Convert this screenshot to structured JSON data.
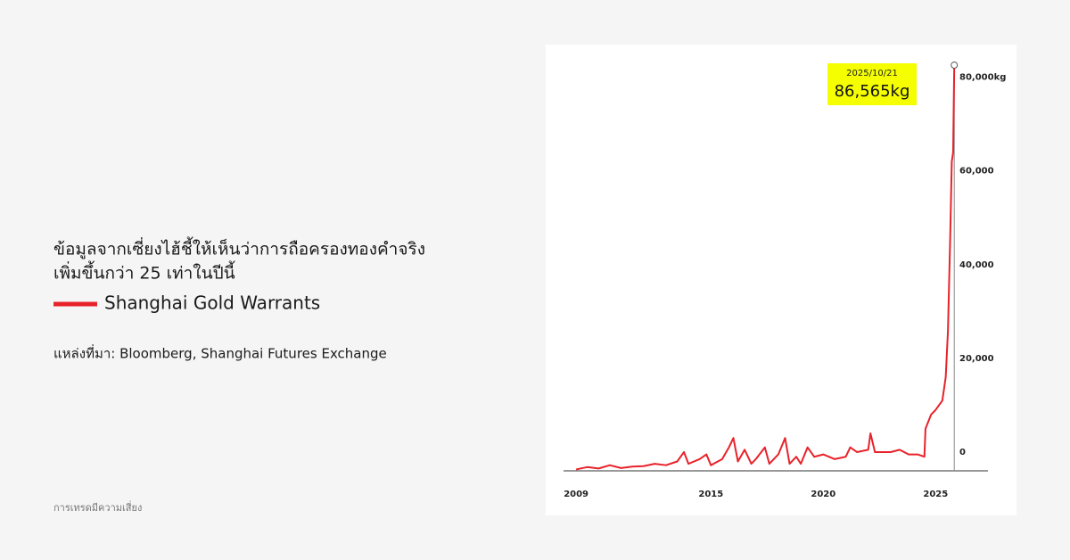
{
  "heading": [
    "ข้อมูลจากเซี่ยงไฮ้ชี้ให้เห็นว่าการถือครองทองคำจริง",
    "เพิ่มขึ้นกว่า 25 เท่าในปีนี้"
  ],
  "source": "แหล่งที่มา: Bloomberg, Shanghai Futures Exchange",
  "disclaimer": "การเทรดมีความเสี่ยง",
  "chart_data": {
    "type": "line",
    "x": [
      2009.0,
      2009.5,
      2010.0,
      2010.5,
      2011.0,
      2011.5,
      2012.0,
      2012.5,
      2013.0,
      2013.5,
      2013.8,
      2014.0,
      2014.5,
      2014.8,
      2015.0,
      2015.5,
      2015.8,
      2016.0,
      2016.2,
      2016.5,
      2016.8,
      2017.0,
      2017.4,
      2017.6,
      2018.0,
      2018.3,
      2018.5,
      2018.8,
      2019.0,
      2019.3,
      2019.6,
      2020.0,
      2020.5,
      2021.0,
      2021.2,
      2021.5,
      2022.0,
      2022.1,
      2022.3,
      2022.8,
      2023.0,
      2023.4,
      2023.8,
      2024.2,
      2024.5,
      2024.55,
      2024.8,
      2025.0,
      2025.3,
      2025.45,
      2025.55,
      2025.65,
      2025.72,
      2025.78,
      2025.83
    ],
    "series": [
      {
        "name": "Shanghai Gold Warrants",
        "color": "#e8222a",
        "values": [
          300,
          800,
          500,
          1200,
          600,
          900,
          1000,
          1500,
          1200,
          2000,
          4000,
          1500,
          2500,
          3500,
          1200,
          2500,
          5000,
          7000,
          2000,
          4500,
          1500,
          2500,
          5000,
          1500,
          3500,
          7000,
          1500,
          3000,
          1500,
          5000,
          3000,
          3500,
          2500,
          3000,
          5000,
          4000,
          4500,
          8000,
          4000,
          4000,
          4000,
          4500,
          3500,
          3500,
          3000,
          9000,
          12000,
          13000,
          15000,
          20000,
          30000,
          50000,
          66000,
          68000,
          86565
        ]
      }
    ],
    "annotation": {
      "x": 2025.83,
      "value": 86565,
      "date": "2025/10/21",
      "label": "86,565kg"
    },
    "xlim": [
      2008.44,
      2027.33
    ],
    "xticks": [
      2009,
      2015,
      2020,
      2025
    ],
    "ylim": [
      0,
      90000
    ],
    "yticks": [
      0,
      {
        "value": 20000,
        "label": "20,000"
      },
      {
        "value": 40000,
        "label": "40,000"
      },
      {
        "value": 60000,
        "label": "60,000"
      },
      {
        "value": 80000,
        "label": "80,000kg"
      }
    ]
  }
}
